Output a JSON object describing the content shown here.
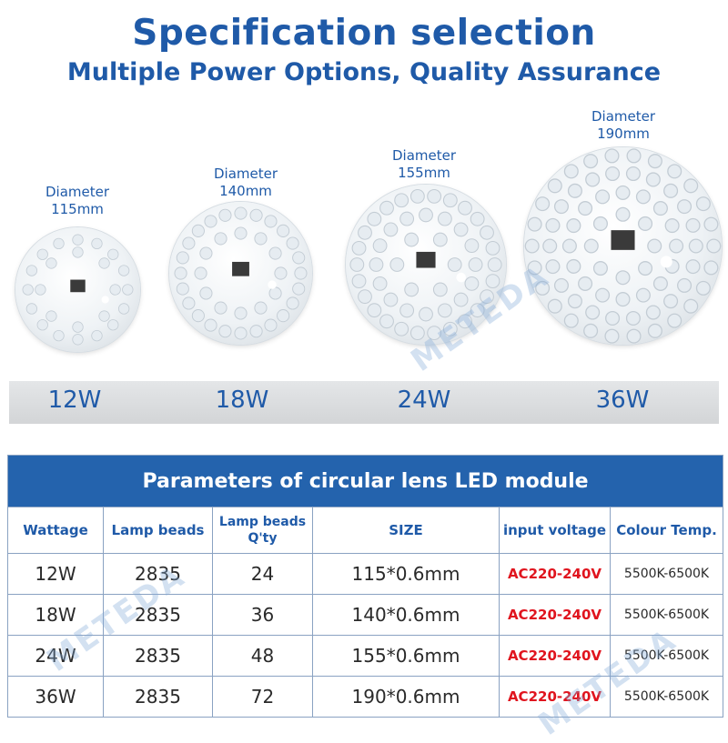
{
  "header": {
    "title": "Specification selection",
    "subtitle": "Multiple Power Options, Quality Assurance"
  },
  "products": [
    {
      "diameter_label": "Diameter",
      "diameter_value": "115mm",
      "wattage": "12W"
    },
    {
      "diameter_label": "Diameter",
      "diameter_value": "140mm",
      "wattage": "18W"
    },
    {
      "diameter_label": "Diameter",
      "diameter_value": "155mm",
      "wattage": "24W"
    },
    {
      "diameter_label": "Diameter",
      "diameter_value": "190mm",
      "wattage": "36W"
    }
  ],
  "watermark": "METEDA",
  "table": {
    "title": "Parameters of circular lens LED module",
    "headers": [
      "Wattage",
      "Lamp beads",
      "Lamp beads Q'ty",
      "SIZE",
      "input voltage",
      "Colour Temp."
    ],
    "rows": [
      [
        "12W",
        "2835",
        "24",
        "115*0.6mm",
        "AC220-240V",
        "5500K-6500K"
      ],
      [
        "18W",
        "2835",
        "36",
        "140*0.6mm",
        "AC220-240V",
        "5500K-6500K"
      ],
      [
        "24W",
        "2835",
        "48",
        "155*0.6mm",
        "AC220-240V",
        "5500K-6500K"
      ],
      [
        "36W",
        "2835",
        "72",
        "190*0.6mm",
        "AC220-240V",
        "5500K-6500K"
      ]
    ]
  },
  "colors": {
    "brand_blue": "#1f5aa8",
    "table_header_bg": "#2463ad",
    "voltage_red": "#e0141e"
  }
}
